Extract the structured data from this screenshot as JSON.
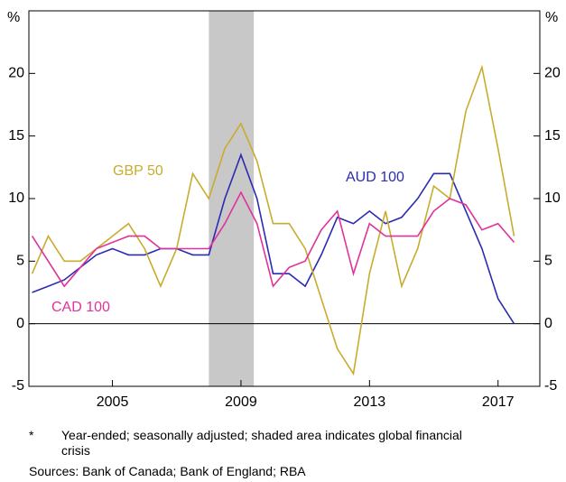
{
  "chart_data": {
    "type": "line",
    "y_unit_label": "%",
    "x": [
      2002.5,
      2003,
      2003.5,
      2004,
      2004.5,
      2005,
      2005.5,
      2006,
      2006.5,
      2007,
      2007.5,
      2008,
      2008.5,
      2009,
      2009.5,
      2010,
      2010.5,
      2011,
      2011.5,
      2012,
      2012.5,
      2013,
      2013.5,
      2014,
      2014.5,
      2015,
      2015.5,
      2016,
      2016.5,
      2017,
      2017.5
    ],
    "series": [
      {
        "name": "AUD 100",
        "color": "#2b2bb3",
        "values": [
          2.5,
          3,
          3.5,
          4.5,
          5.5,
          6,
          5.5,
          5.5,
          6,
          6,
          5.5,
          5.5,
          10,
          13.5,
          10,
          4,
          4,
          3,
          5.5,
          8.5,
          8,
          9,
          8,
          8.5,
          10,
          12,
          12,
          9,
          6,
          2,
          0
        ]
      },
      {
        "name": "GBP 50",
        "color": "#c8ac2e",
        "values": [
          4,
          7,
          5,
          5,
          6,
          7,
          8,
          6,
          3,
          6,
          12,
          10,
          14,
          16,
          13,
          8,
          8,
          6,
          2,
          -2,
          -4,
          4,
          9,
          3,
          6,
          11,
          10,
          17,
          20.5,
          14,
          7
        ]
      },
      {
        "name": "CAD 100",
        "color": "#e0329a",
        "values": [
          7,
          5,
          3,
          4.5,
          6,
          6.5,
          7,
          7,
          6,
          6,
          6,
          6,
          8,
          10.5,
          8,
          3,
          4.5,
          5,
          7.5,
          9,
          4,
          8,
          7,
          7,
          7,
          9,
          10,
          9.5,
          7.5,
          8,
          6.5
        ]
      }
    ],
    "shaded_range": [
      2008,
      2009.4
    ],
    "xlim": [
      2002.4,
      2018.3
    ],
    "xticks": [
      2005,
      2009,
      2013,
      2017
    ],
    "ylim": [
      -5,
      25
    ],
    "yticks": [
      -5,
      0,
      5,
      10,
      15,
      20
    ],
    "footnote_marker": "*",
    "footnote": "Year-ended; seasonally adjusted; shaded area indicates global financial crisis",
    "sources": "Sources: Bank of Canada; Bank of England; RBA"
  }
}
